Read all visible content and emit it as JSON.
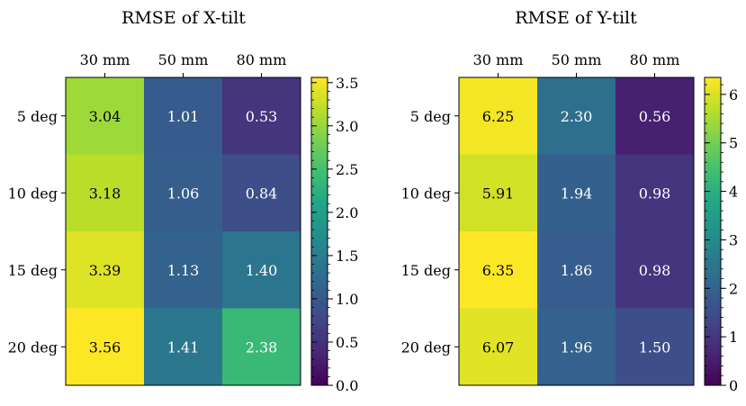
{
  "chart_data": [
    {
      "type": "heatmap",
      "title": "RMSE of X-tilt",
      "x_categories": [
        "30 mm",
        "50 mm",
        "80 mm"
      ],
      "y_categories": [
        "5 deg",
        "10 deg",
        "15 deg",
        "20 deg"
      ],
      "values": [
        [
          3.04,
          1.01,
          0.53
        ],
        [
          3.18,
          1.06,
          0.84
        ],
        [
          3.39,
          1.13,
          1.4
        ],
        [
          3.56,
          1.41,
          2.38
        ]
      ],
      "value_labels": [
        [
          "3.04",
          "1.01",
          "0.53"
        ],
        [
          "3.18",
          "1.06",
          "0.84"
        ],
        [
          "3.39",
          "1.13",
          "1.40"
        ],
        [
          "3.56",
          "1.41",
          "2.38"
        ]
      ],
      "colormap": "viridis",
      "color_range": [
        0.0,
        3.56
      ],
      "colorbar_ticks": [
        0.0,
        0.5,
        1.0,
        1.5,
        2.0,
        2.5,
        3.0,
        3.5
      ],
      "colorbar_tick_labels": [
        "0.0",
        "0.5",
        "1.0",
        "1.5",
        "2.0",
        "2.5",
        "3.0",
        "3.5"
      ]
    },
    {
      "type": "heatmap",
      "title": "RMSE of Y-tilt",
      "x_categories": [
        "30 mm",
        "50 mm",
        "80 mm"
      ],
      "y_categories": [
        "5 deg",
        "10 deg",
        "15 deg",
        "20 deg"
      ],
      "values": [
        [
          6.25,
          2.3,
          0.56
        ],
        [
          5.91,
          1.94,
          0.98
        ],
        [
          6.35,
          1.86,
          0.98
        ],
        [
          6.07,
          1.96,
          1.5
        ]
      ],
      "value_labels": [
        [
          "6.25",
          "2.30",
          "0.56"
        ],
        [
          "5.91",
          "1.94",
          "0.98"
        ],
        [
          "6.35",
          "1.86",
          "0.98"
        ],
        [
          "6.07",
          "1.96",
          "1.50"
        ]
      ],
      "colormap": "viridis",
      "color_range": [
        0.0,
        6.35
      ],
      "colorbar_ticks": [
        0,
        1,
        2,
        3,
        4,
        5,
        6
      ],
      "colorbar_tick_labels": [
        "0",
        "1",
        "2",
        "3",
        "4",
        "5",
        "6"
      ]
    }
  ]
}
